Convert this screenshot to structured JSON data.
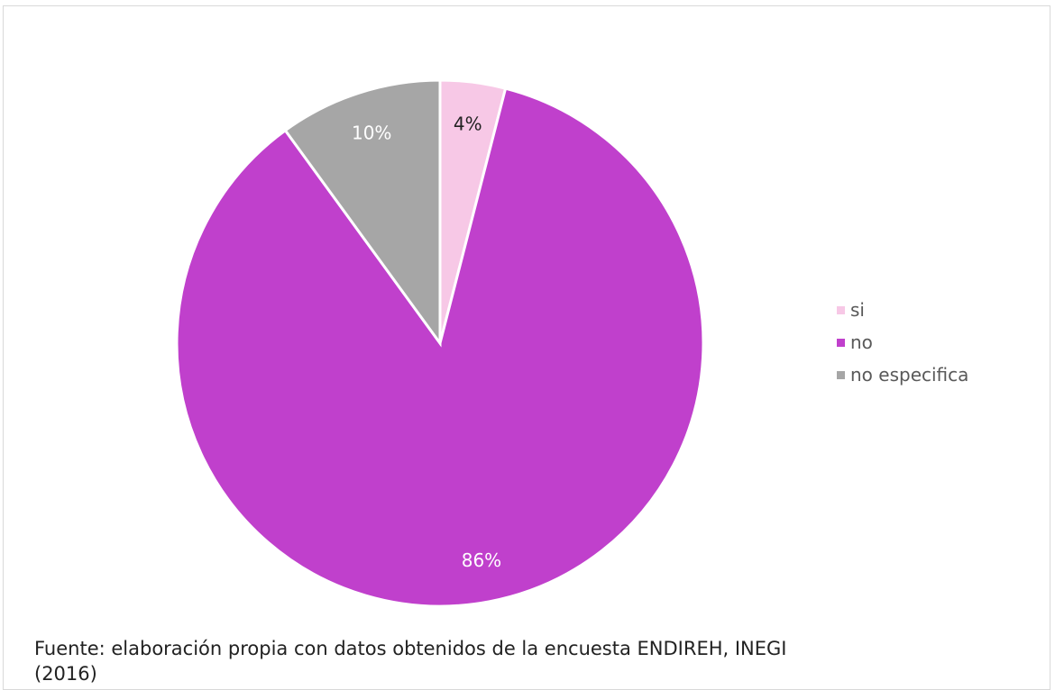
{
  "chart_data": {
    "type": "pie",
    "categories": [
      "si",
      "no",
      "no especifica"
    ],
    "values": [
      4,
      86,
      10
    ],
    "labels": [
      "4%",
      "86%",
      "10%"
    ],
    "colors": [
      "#f7c8e6",
      "#c040cc",
      "#a6a6a6"
    ],
    "label_colors": [
      "#222222",
      "#ffffff",
      "#ffffff"
    ],
    "legend_position": "right"
  },
  "source_note": "Fuente: elaboración propia con datos obtenidos de la encuesta ENDIREH, INEGI",
  "source_note_line2": "(2016)"
}
